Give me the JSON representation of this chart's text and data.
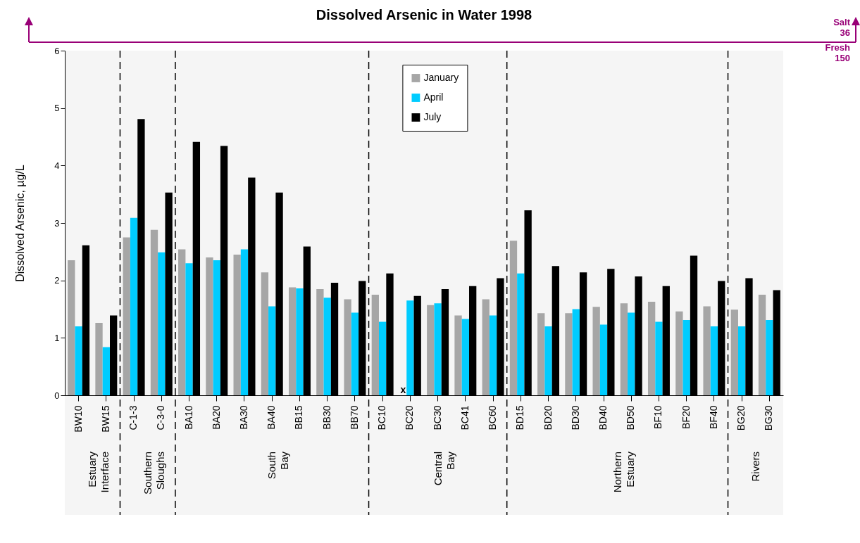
{
  "chart_data": {
    "type": "bar",
    "title": "Dissolved Arsenic in Water 1998",
    "ylabel": "Dissolved Arsenic, µg/L",
    "categories": [
      "BW10",
      "BW15",
      "C-1-3",
      "C-3-0",
      "BA10",
      "BA20",
      "BA30",
      "BA40",
      "BB15",
      "BB30",
      "BB70",
      "BC10",
      "BC20",
      "BC30",
      "BC41",
      "BC60",
      "BD15",
      "BD20",
      "BD30",
      "BD40",
      "BD50",
      "BF10",
      "BF20",
      "BF40",
      "BG20",
      "BG30"
    ],
    "series": [
      {
        "name": "January",
        "color": "#a6a6a6",
        "values": [
          2.35,
          1.26,
          2.75,
          2.88,
          2.54,
          2.4,
          2.45,
          2.14,
          1.88,
          1.85,
          1.67,
          1.75,
          null,
          1.57,
          1.39,
          1.67,
          2.69,
          1.43,
          1.43,
          1.54,
          1.6,
          1.63,
          1.46,
          1.55,
          1.49,
          1.75
        ]
      },
      {
        "name": "April",
        "color": "#00ccff",
        "values": [
          1.2,
          0.84,
          3.09,
          2.49,
          2.3,
          2.35,
          2.54,
          1.55,
          1.86,
          1.7,
          1.44,
          1.28,
          1.65,
          1.6,
          1.33,
          1.39,
          2.12,
          1.2,
          1.5,
          1.23,
          1.44,
          1.28,
          1.31,
          1.2,
          1.2,
          1.31
        ]
      },
      {
        "name": "July",
        "color": "#000000",
        "values": [
          2.61,
          1.39,
          4.81,
          3.53,
          4.41,
          4.34,
          3.79,
          3.53,
          2.59,
          1.96,
          1.99,
          2.12,
          1.73,
          1.85,
          1.9,
          2.04,
          3.22,
          2.25,
          2.14,
          2.2,
          2.07,
          1.9,
          2.43,
          1.99,
          2.04,
          1.83
        ]
      }
    ],
    "ylim": [
      0,
      6
    ],
    "yticks": [
      0,
      1,
      2,
      3,
      4,
      5,
      6
    ],
    "legend": "top",
    "bands": [
      {
        "axis": "x",
        "from": "BW10",
        "to": "BW15",
        "label": "Estuary Interface",
        "color": "#f5f5f5"
      },
      {
        "axis": "x",
        "from": "C-1-3",
        "to": "C-3-0",
        "label": "Southern Sloughs",
        "color": "#f5f5f5"
      },
      {
        "axis": "x",
        "from": "BA10",
        "to": "BB70",
        "label": "South Bay",
        "color": "#f5f5f5"
      },
      {
        "axis": "x",
        "from": "BC10",
        "to": "BC60",
        "label": "Central Bay",
        "color": "#f5f5f5"
      },
      {
        "axis": "x",
        "from": "BD15",
        "to": "BF40",
        "label": "Northern Estuary",
        "color": "#f5f5f5"
      },
      {
        "axis": "x",
        "from": "BG20",
        "to": "BG30",
        "label": "Rivers",
        "color": "#f5f5f5"
      }
    ],
    "annotations": [
      {
        "text": "x",
        "x": "BC20",
        "y": 0
      },
      "Salt 36",
      "Fresh 150"
    ]
  }
}
